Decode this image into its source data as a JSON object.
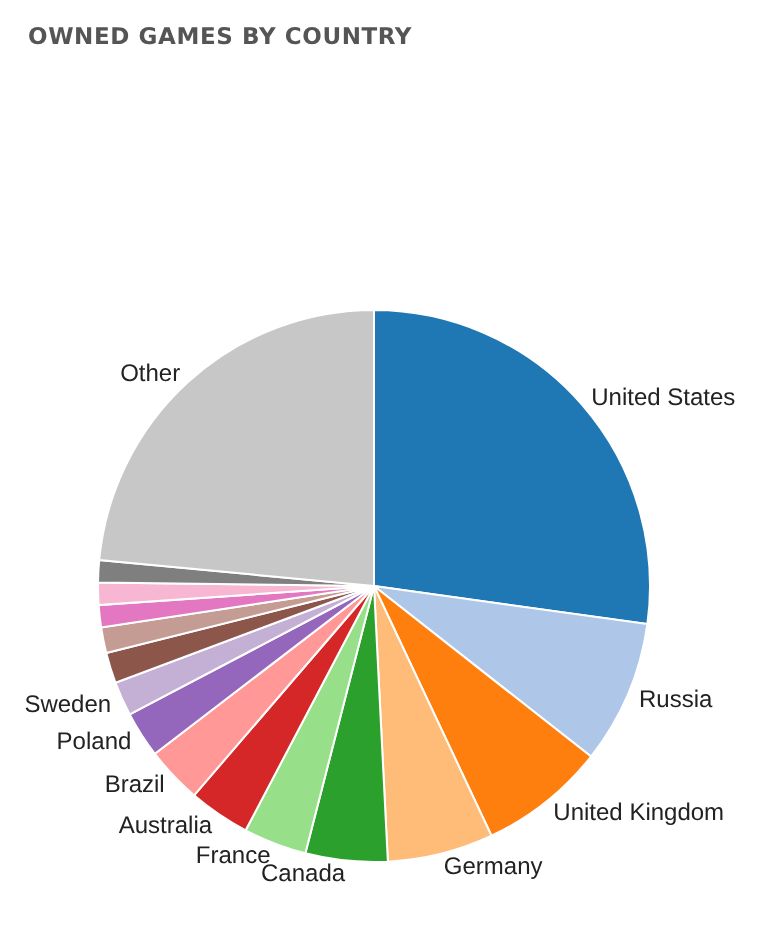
{
  "chart_data": {
    "type": "pie",
    "title": "OWNED GAMES BY COUNTRY",
    "categories": [
      "United States",
      "Russia",
      "United Kingdom",
      "Germany",
      "Canada",
      "France",
      "Australia",
      "Brazil",
      "Poland",
      "Sweden",
      null,
      null,
      null,
      null,
      null,
      "Other"
    ],
    "values": [
      27.2,
      8.4,
      7.4,
      6.2,
      4.8,
      3.7,
      3.6,
      3.3,
      2.7,
      2.0,
      1.8,
      1.5,
      1.3,
      1.3,
      1.3,
      23.5
    ],
    "colors": [
      "#1f77b4",
      "#aec7e8",
      "#ff7f0e",
      "#ffbb78",
      "#2ca02c",
      "#98df8a",
      "#d62728",
      "#ff9896",
      "#9467bd",
      "#c5b0d5",
      "#8c564b",
      "#c49c94",
      "#e377c2",
      "#f7b6d2",
      "#7f7f7f",
      "#c7c7c7"
    ]
  }
}
